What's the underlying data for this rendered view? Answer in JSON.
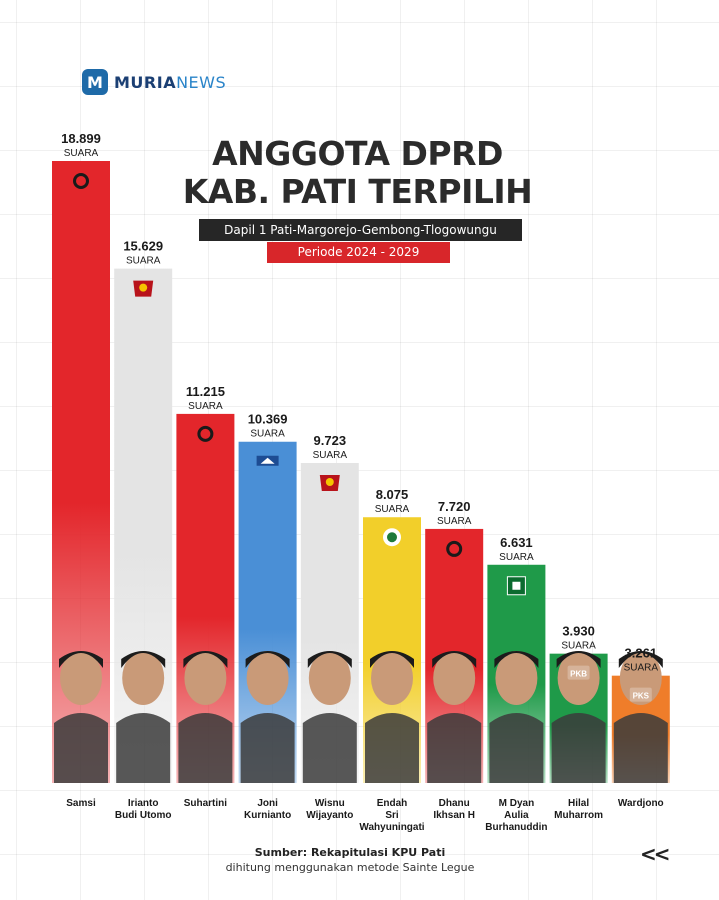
{
  "brand": {
    "mark": "M",
    "name_bold": "MURIA",
    "name_light": "NEWS"
  },
  "header": {
    "title_line1": "ANGGOTA DPRD",
    "title_line2": "KAB. PATI TERPILIH",
    "dapil": "Dapil 1 Pati-Margorejo-Gembong-Tlogowungu",
    "periode": "Periode 2024 - 2029"
  },
  "chart_data": {
    "type": "bar",
    "categories": [
      "Samsi",
      "Irianto Budi Utomo",
      "Suhartini",
      "Joni Kurnianto",
      "Wisnu Wijayanto",
      "Endah Sri Wahyuningati",
      "Dhanu Ikhsan H",
      "M Dyan Aulia Burhanuddin",
      "Hilal Muharrom",
      "Wardjono"
    ],
    "category_lines": [
      [
        "Samsi"
      ],
      [
        "Irianto",
        "Budi Utomo"
      ],
      [
        "Suhartini"
      ],
      [
        "Joni",
        "Kurnianto"
      ],
      [
        "Wisnu",
        "Wijayanto"
      ],
      [
        "Endah",
        "Sri",
        "Wahyuningati"
      ],
      [
        "Dhanu",
        "Ikhsan H"
      ],
      [
        "M Dyan",
        "Aulia",
        "Burhanuddin"
      ],
      [
        "Hilal",
        "Muharrom"
      ],
      [
        "Wardjono"
      ]
    ],
    "values": [
      18899,
      15629,
      11215,
      10369,
      9723,
      8075,
      7720,
      6631,
      3930,
      3261
    ],
    "value_labels": [
      "18.899",
      "15.629",
      "11.215",
      "10.369",
      "9.723",
      "8.075",
      "7.720",
      "6.631",
      "3.930",
      "3.261"
    ],
    "unit_label": "SUARA",
    "party_badges": [
      "PDI",
      "GERINDRA",
      "PDI",
      "DEMOKRAT",
      "GERINDRA",
      "GOLKAR",
      "PDI",
      "PPP",
      "PKB",
      "PKS"
    ],
    "party_badge_text": {
      "PKB": "PKB",
      "PKS": "PKS"
    },
    "colors": [
      "#e3262b",
      "#e4e4e4",
      "#e3262b",
      "#4a8fd6",
      "#e4e4e4",
      "#f2cf2a",
      "#e3262b",
      "#1f9a49",
      "#1f9a49",
      "#ef7d2a"
    ],
    "ylim": [
      0,
      18899
    ],
    "grid": true
  },
  "source": {
    "main": "Sumber: Rekapitulasi KPU Pati",
    "sub": "dihitung menggunakan metode Sainte Legue"
  },
  "nav": {
    "back_label": "<<"
  }
}
